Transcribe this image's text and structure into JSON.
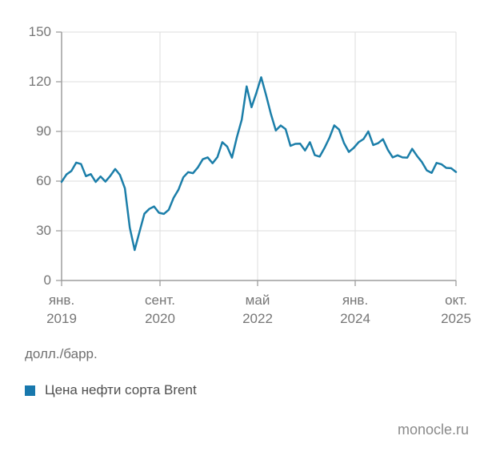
{
  "chart_data": {
    "type": "line",
    "title": "",
    "series_name": "Цена нефти сорта Brent",
    "unit_label": "долл./барр.",
    "x_range": [
      "2019-01",
      "2025-10"
    ],
    "interval": "monthly",
    "ylim": [
      0,
      150
    ],
    "grid": true,
    "legend_position": "bottom-left",
    "line_color": "#1b7ea9",
    "y_tick_values": [
      150,
      120,
      90,
      60,
      30,
      0
    ],
    "y_tick_labels": [
      "150",
      "120",
      "90",
      "60",
      "30",
      "0"
    ],
    "x_tick_labels": [
      {
        "month": "янв.",
        "year": "2019"
      },
      {
        "month": "сент.",
        "year": "2020"
      },
      {
        "month": "май",
        "year": "2022"
      },
      {
        "month": "янв.",
        "year": "2024"
      },
      {
        "month": "окт.",
        "year": "2025"
      }
    ],
    "values": [
      59.5,
      64.0,
      66.1,
      71.2,
      70.3,
      63.0,
      64.2,
      59.5,
      62.8,
      59.7,
      63.2,
      67.3,
      63.7,
      55.7,
      32.0,
      18.4,
      29.4,
      40.3,
      43.2,
      44.7,
      40.9,
      40.2,
      42.7,
      49.9,
      54.8,
      62.3,
      65.4,
      64.8,
      68.3,
      73.2,
      74.3,
      70.8,
      74.5,
      83.5,
      80.9,
      74.2,
      86.5,
      97.1,
      117.2,
      104.6,
      113.3,
      122.7,
      111.9,
      100.4,
      90.6,
      93.6,
      91.4,
      81.3,
      82.5,
      82.6,
      78.5,
      83.5,
      75.7,
      74.8,
      80.1,
      86.2,
      93.7,
      91.1,
      83.0,
      77.6,
      80.1,
      83.5,
      85.4,
      90.0,
      81.8,
      82.9,
      85.3,
      78.9,
      74.3,
      75.6,
      74.3,
      74.2,
      79.5,
      75.2,
      71.5,
      66.5,
      65.0,
      71.0,
      70.2,
      68.0,
      67.8,
      65.5
    ]
  },
  "legend": {
    "label": "Цена нефти сорта Brent",
    "color": "#1878ad"
  },
  "footer": {
    "source": "monocle.ru"
  }
}
